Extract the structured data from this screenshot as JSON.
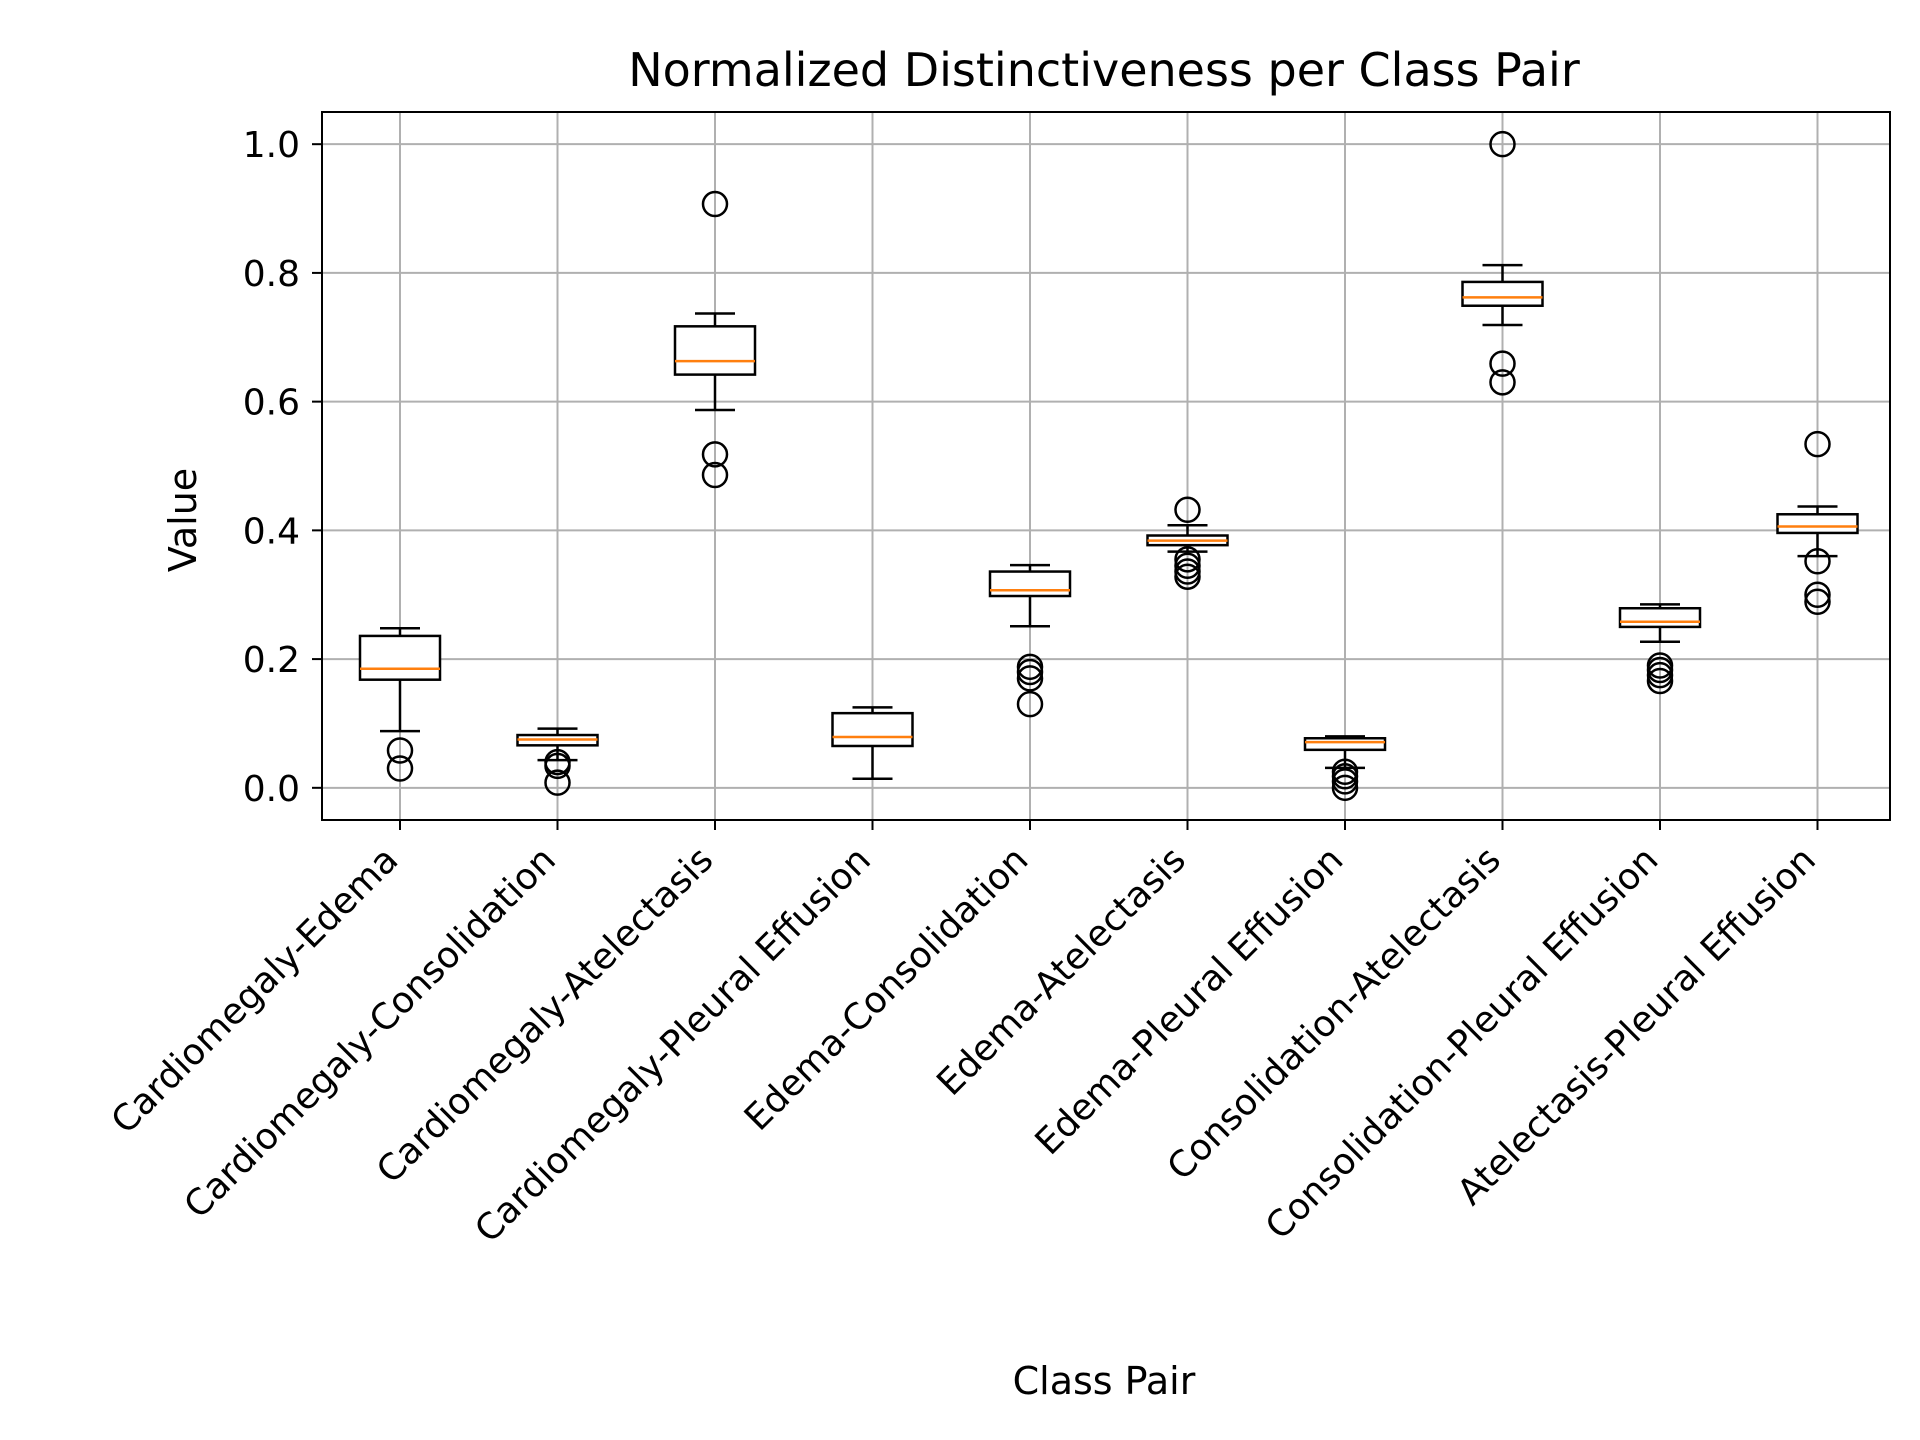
{
  "chart_data": {
    "type": "box",
    "title": "Normalized Distinctiveness per Class Pair",
    "xlabel": "Class Pair",
    "ylabel": "Value",
    "ylim": [
      -0.05,
      1.05
    ],
    "yticks": [
      0.0,
      0.2,
      0.4,
      0.6,
      0.8,
      1.0
    ],
    "ytick_labels": [
      "0.0",
      "0.2",
      "0.4",
      "0.6",
      "0.8",
      "1.0"
    ],
    "grid": true,
    "colors": {
      "median": "#ff7f0e",
      "box": "#000000",
      "grid": "#b0b0b0"
    },
    "categories": [
      "Cardiomegaly-Edema",
      "Cardiomegaly-Consolidation",
      "Cardiomegaly-Atelectasis",
      "Cardiomegaly-Pleural Effusion",
      "Edema-Consolidation",
      "Edema-Atelectasis",
      "Edema-Pleural Effusion",
      "Consolidation-Atelectasis",
      "Consolidation-Pleural Effusion",
      "Atelectasis-Pleural Effusion"
    ],
    "boxes": [
      {
        "whisker_low": 0.088,
        "q1": 0.168,
        "median": 0.185,
        "q3": 0.236,
        "whisker_high": 0.248,
        "fliers": [
          0.058,
          0.03
        ]
      },
      {
        "whisker_low": 0.043,
        "q1": 0.066,
        "median": 0.075,
        "q3": 0.082,
        "whisker_high": 0.092,
        "fliers": [
          0.04,
          0.034,
          0.008
        ]
      },
      {
        "whisker_low": 0.587,
        "q1": 0.642,
        "median": 0.663,
        "q3": 0.717,
        "whisker_high": 0.737,
        "fliers": [
          0.907,
          0.518,
          0.486
        ]
      },
      {
        "whisker_low": 0.014,
        "q1": 0.065,
        "median": 0.079,
        "q3": 0.116,
        "whisker_high": 0.125,
        "fliers": []
      },
      {
        "whisker_low": 0.251,
        "q1": 0.298,
        "median": 0.307,
        "q3": 0.336,
        "whisker_high": 0.346,
        "fliers": [
          0.188,
          0.18,
          0.17,
          0.13
        ]
      },
      {
        "whisker_low": 0.367,
        "q1": 0.377,
        "median": 0.384,
        "q3": 0.392,
        "whisker_high": 0.408,
        "fliers": [
          0.432,
          0.355,
          0.345,
          0.336,
          0.328
        ]
      },
      {
        "whisker_low": 0.031,
        "q1": 0.059,
        "median": 0.071,
        "q3": 0.077,
        "whisker_high": 0.08,
        "fliers": [
          0.025,
          0.018,
          0.01,
          0.0
        ]
      },
      {
        "whisker_low": 0.719,
        "q1": 0.749,
        "median": 0.762,
        "q3": 0.786,
        "whisker_high": 0.812,
        "fliers": [
          1.0,
          0.659,
          0.63
        ]
      },
      {
        "whisker_low": 0.227,
        "q1": 0.25,
        "median": 0.258,
        "q3": 0.279,
        "whisker_high": 0.285,
        "fliers": [
          0.19,
          0.183,
          0.175,
          0.166
        ]
      },
      {
        "whisker_low": 0.36,
        "q1": 0.396,
        "median": 0.406,
        "q3": 0.425,
        "whisker_high": 0.437,
        "fliers": [
          0.534,
          0.352,
          0.3,
          0.289
        ]
      }
    ]
  }
}
